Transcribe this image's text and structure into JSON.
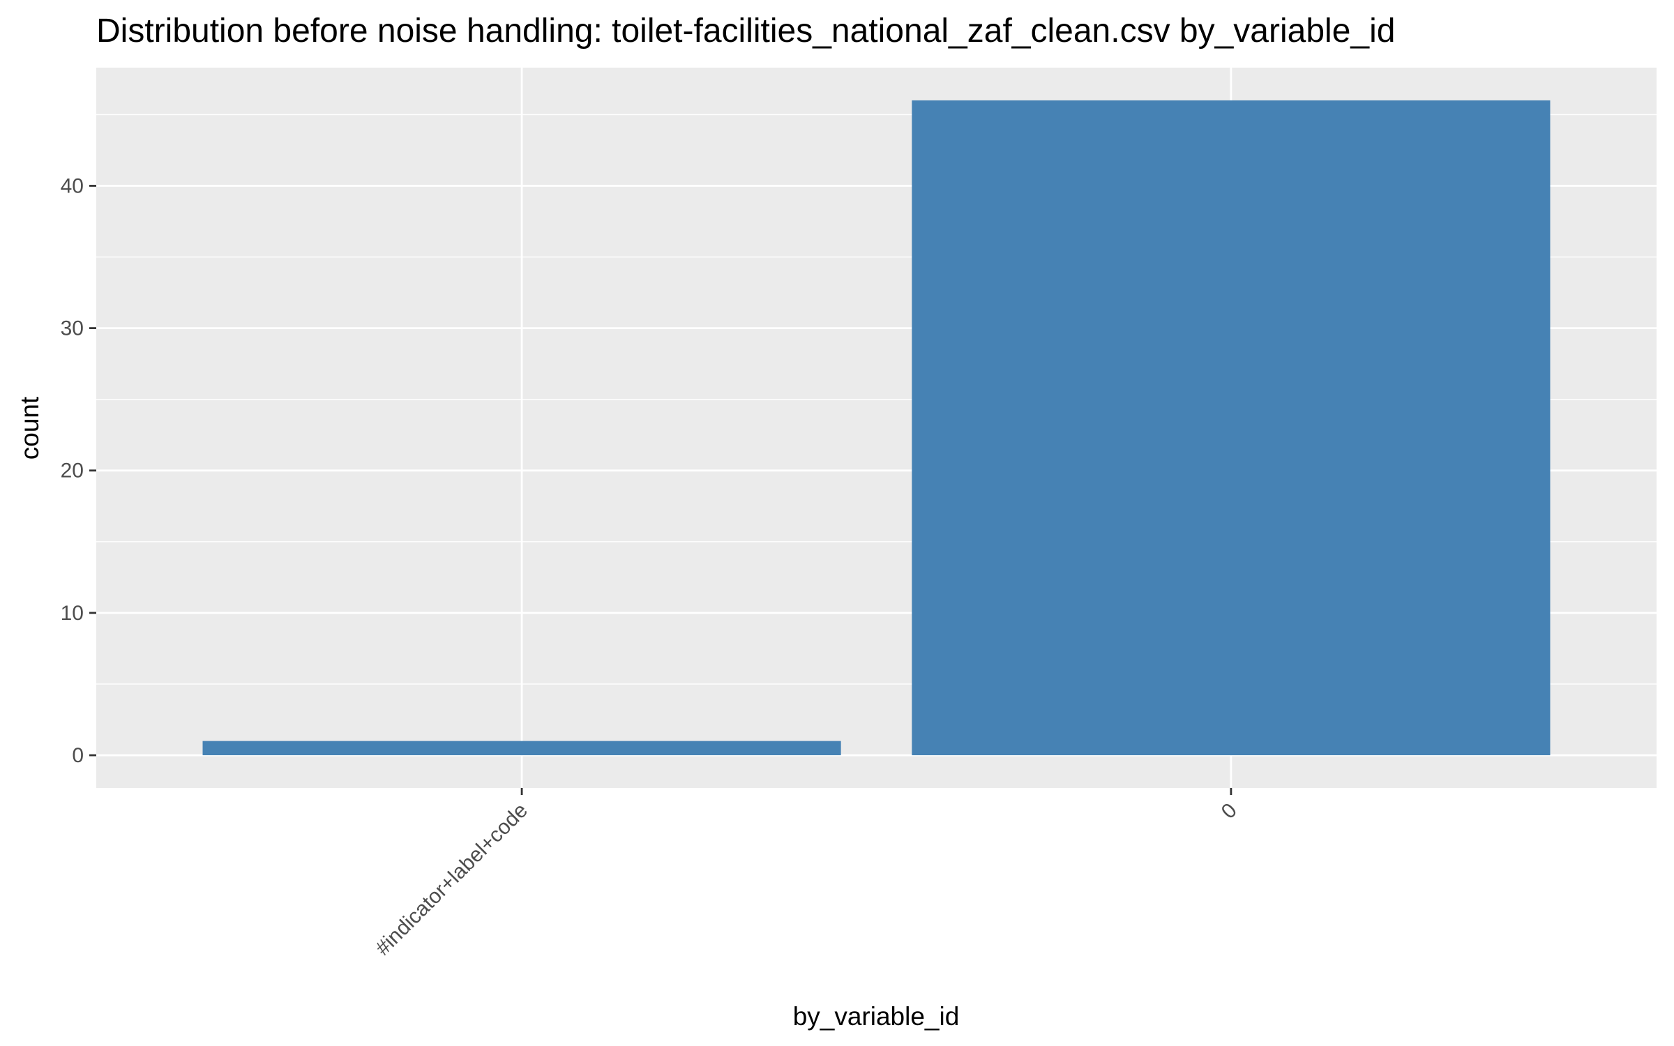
{
  "chart_data": {
    "type": "bar",
    "title": "Distribution before noise handling: toilet-facilities_national_zaf_clean.csv by_variable_id",
    "xlabel": "by_variable_id",
    "ylabel": "count",
    "categories": [
      "#indicator+label+code",
      "0"
    ],
    "values": [
      1,
      46
    ],
    "ylim": [
      -2.3,
      48.3
    ],
    "yticks": [
      0,
      10,
      20,
      30,
      40
    ],
    "grid": true,
    "legend": "none",
    "colors": {
      "bar": "#4682b4",
      "panel": "#ebebeb",
      "grid": "#ffffff",
      "tick_text": "#4d4d4d",
      "tick_mark": "#333333"
    }
  }
}
